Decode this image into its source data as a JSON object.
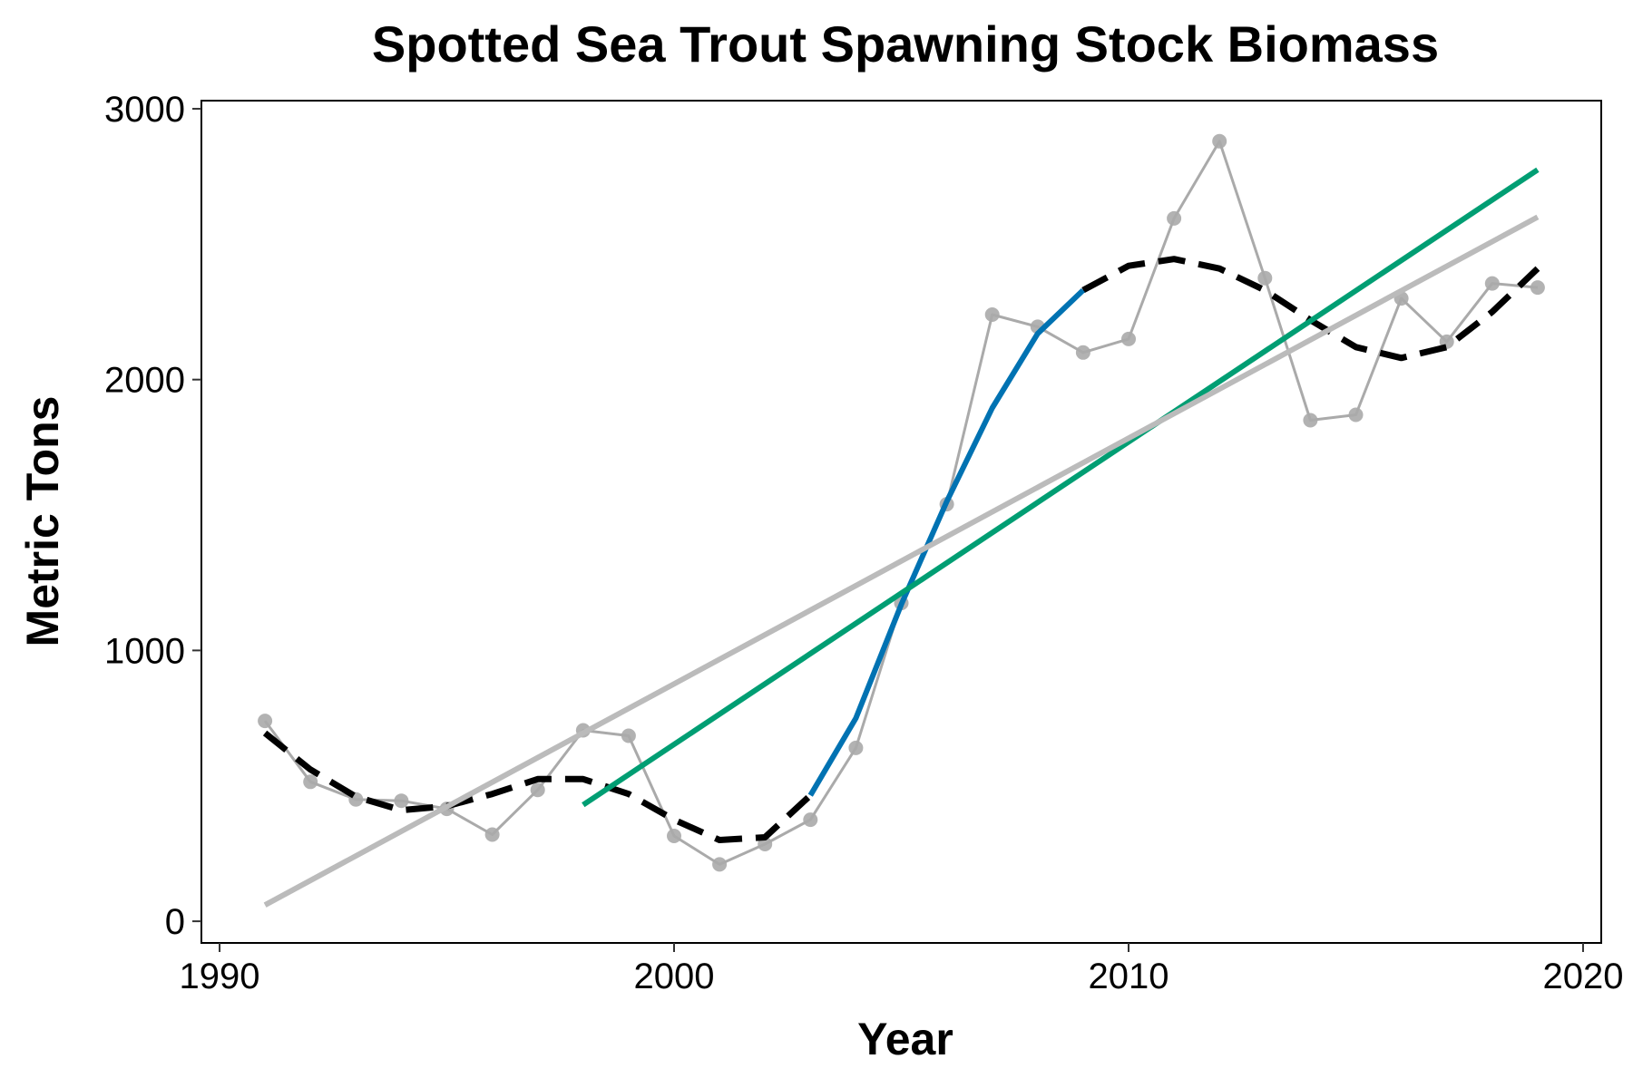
{
  "chart_data": {
    "type": "line",
    "title": "Spotted Sea Trout Spawning Stock Biomass",
    "xlabel": "Year",
    "ylabel": "Metric Tons",
    "xlim": [
      1989.6,
      2020.4
    ],
    "ylim": [
      -80,
      3030
    ],
    "x_ticks": [
      1990,
      2000,
      2010,
      2020
    ],
    "y_ticks": [
      0,
      1000,
      2000,
      3000
    ],
    "grid": false,
    "legend": "none",
    "series": [
      {
        "style": "points-line",
        "color": "#aaaaaa",
        "x": [
          1991,
          1992,
          1993,
          1994,
          1995,
          1996,
          1997,
          1998,
          1999,
          2000,
          2001,
          2002,
          2003,
          2004,
          2005,
          2006,
          2007,
          2008,
          2009,
          2010,
          2011,
          2012,
          2013,
          2014,
          2015,
          2016,
          2017,
          2018,
          2019
        ],
        "y": [
          740,
          515,
          450,
          445,
          415,
          320,
          485,
          705,
          685,
          315,
          210,
          285,
          375,
          640,
          1175,
          1540,
          2240,
          2195,
          2100,
          2150,
          2595,
          2880,
          2375,
          1850,
          1870,
          2300,
          2140,
          2355,
          2340
        ]
      },
      {
        "style": "dashed",
        "color": "#000000",
        "x": [
          1991,
          1992,
          1993,
          1994,
          1995,
          1996,
          1997,
          1998,
          1999,
          2000,
          2001,
          2002,
          2003
        ],
        "y": [
          695,
          560,
          460,
          410,
          425,
          470,
          525,
          525,
          470,
          375,
          300,
          310,
          465
        ]
      },
      {
        "style": "dashed",
        "color": "#000000",
        "x": [
          2009,
          2010,
          2011,
          2012,
          2013,
          2014,
          2015,
          2016,
          2017,
          2018,
          2019
        ],
        "y": [
          2330,
          2420,
          2445,
          2410,
          2330,
          2220,
          2120,
          2080,
          2120,
          2250,
          2410
        ]
      },
      {
        "style": "solid",
        "color": "#0072b2",
        "x": [
          2003,
          2004,
          2005,
          2006,
          2007,
          2008,
          2009
        ],
        "y": [
          465,
          750,
          1170,
          1550,
          1895,
          2170,
          2330
        ]
      },
      {
        "style": "solid",
        "color": "#009e73",
        "x": [
          1998,
          2019
        ],
        "y": [
          430,
          2775
        ]
      },
      {
        "style": "solid",
        "color": "#bbbbbb",
        "x": [
          1991,
          2019
        ],
        "y": [
          60,
          2600
        ]
      }
    ]
  }
}
